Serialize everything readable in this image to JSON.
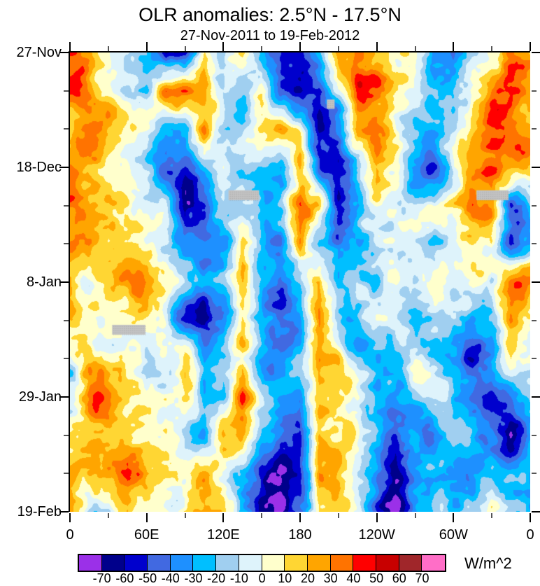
{
  "title": "OLR anomalies: 2.5°N - 17.5°N",
  "subtitle": "27-Nov-2011 to 19-Feb-2012",
  "colorbar": {
    "units_label": "W/m^2",
    "levels": [
      -70,
      -60,
      -50,
      -40,
      -30,
      -20,
      -10,
      0,
      10,
      20,
      30,
      40,
      50,
      60,
      70
    ],
    "colors": [
      "#9B30E8",
      "#00008B",
      "#0000CD",
      "#4169E1",
      "#1E90FF",
      "#00BFFF",
      "#A0CFF0",
      "#DEF3FB",
      "#FFFFCC",
      "#FFD633",
      "#FFA500",
      "#FF7300",
      "#FF0000",
      "#C80000",
      "#A0262A",
      "#FF6EC7"
    ],
    "missing_color": "#C3C3C3"
  },
  "axes": {
    "x_major": [
      {
        "deg": 0,
        "label": "0"
      },
      {
        "deg": 60,
        "label": "60E"
      },
      {
        "deg": 120,
        "label": "120E"
      },
      {
        "deg": 180,
        "label": "180"
      },
      {
        "deg": 240,
        "label": "120W"
      },
      {
        "deg": 300,
        "label": "60W"
      },
      {
        "deg": 360,
        "label": "0"
      }
    ],
    "x_minor_deg": [
      30,
      90,
      150,
      210,
      270,
      330
    ],
    "y_major": [
      {
        "day": 0,
        "label": "27-Nov"
      },
      {
        "day": 21,
        "label": "18-Dec"
      },
      {
        "day": 42,
        "label": "8-Jan"
      },
      {
        "day": 63,
        "label": "29-Jan"
      },
      {
        "day": 84,
        "label": "19-Feb"
      }
    ],
    "y_minor_days": [
      7,
      14,
      28,
      35,
      49,
      56,
      70,
      77
    ]
  },
  "chart_data": {
    "type": "heatmap",
    "title": "OLR anomalies: 2.5°N - 17.5°N",
    "subtitle": "27-Nov-2011 to 19-Feb-2012",
    "xlabel_circ_deg": "longitude 0..360 (labels 0,60E,120E,180,120W,60W,0)",
    "ylabel_time": "27-Nov-2011 (top) to 19-Feb-2012 (bottom), major ticks every 21 days",
    "units": "W/m^2",
    "contour_levels": [
      -70,
      -60,
      -50,
      -40,
      -30,
      -20,
      -10,
      0,
      10,
      20,
      30,
      40,
      50,
      60,
      70
    ],
    "x_lon_deg": [
      0,
      15,
      30,
      45,
      60,
      75,
      90,
      105,
      120,
      135,
      150,
      165,
      180,
      195,
      210,
      225,
      240,
      255,
      270,
      285,
      300,
      315,
      330,
      345,
      360
    ],
    "y_dates": [
      "27-Nov",
      "4-Dec",
      "11-Dec",
      "18-Dec",
      "25-Dec",
      "1-Jan",
      "8-Jan",
      "15-Jan",
      "22-Jan",
      "29-Jan",
      "5-Feb",
      "12-Feb",
      "19-Feb"
    ],
    "values_wm2": [
      [
        25,
        30,
        15,
        5,
        -15,
        -75,
        -60,
        20,
        -15,
        10,
        -35,
        -45,
        -55,
        -25,
        30,
        35,
        20,
        5,
        15,
        -35,
        -50,
        -15,
        15,
        30,
        25
      ],
      [
        30,
        25,
        10,
        -5,
        -15,
        30,
        45,
        30,
        0,
        -20,
        0,
        -60,
        -65,
        -60,
        -15,
        35,
        30,
        5,
        0,
        -20,
        -25,
        15,
        35,
        50,
        30
      ],
      [
        20,
        30,
        15,
        0,
        -10,
        -30,
        -35,
        30,
        -5,
        -15,
        5,
        25,
        10,
        -60,
        -35,
        30,
        35,
        5,
        -30,
        -35,
        -15,
        15,
        35,
        35,
        30
      ],
      [
        20,
        15,
        5,
        0,
        -15,
        -40,
        -45,
        -25,
        0,
        -15,
        -30,
        -40,
        20,
        -50,
        -65,
        -30,
        20,
        0,
        -35,
        -45,
        -10,
        15,
        30,
        30,
        20
      ],
      [
        30,
        25,
        15,
        10,
        0,
        -15,
        -75,
        -60,
        -15,
        -15,
        -35,
        -25,
        30,
        15,
        -60,
        -35,
        0,
        5,
        -10,
        0,
        15,
        30,
        15,
        -40,
        -15
      ],
      [
        20,
        30,
        15,
        25,
        10,
        0,
        -40,
        -50,
        -30,
        20,
        -30,
        -45,
        25,
        -35,
        -45,
        -20,
        0,
        5,
        0,
        -25,
        -15,
        15,
        25,
        -50,
        -25
      ],
      [
        15,
        -10,
        10,
        15,
        25,
        0,
        -20,
        -35,
        -25,
        15,
        -35,
        -55,
        -30,
        30,
        -20,
        0,
        -15,
        5,
        -20,
        0,
        -15,
        0,
        -15,
        40,
        30
      ],
      [
        5,
        10,
        5,
        5,
        10,
        -5,
        -60,
        -65,
        -35,
        15,
        -25,
        -50,
        -35,
        35,
        -20,
        -35,
        0,
        5,
        -25,
        -15,
        -25,
        -30,
        -15,
        30,
        5
      ],
      [
        -10,
        20,
        10,
        0,
        -10,
        0,
        15,
        -40,
        -30,
        0,
        -20,
        -40,
        -25,
        35,
        25,
        -15,
        -25,
        -15,
        0,
        -20,
        -40,
        -55,
        -35,
        10,
        -5
      ],
      [
        5,
        25,
        20,
        5,
        0,
        15,
        10,
        -35,
        -35,
        35,
        -15,
        -30,
        -35,
        30,
        25,
        15,
        -25,
        -20,
        -15,
        -5,
        -20,
        -40,
        -55,
        -35,
        -20
      ],
      [
        15,
        20,
        15,
        5,
        -10,
        10,
        -15,
        -25,
        25,
        15,
        -30,
        -40,
        -50,
        30,
        25,
        10,
        -30,
        -60,
        -30,
        -35,
        -20,
        -30,
        -40,
        -70,
        -30
      ],
      [
        15,
        20,
        25,
        40,
        25,
        15,
        0,
        15,
        0,
        -25,
        -60,
        -75,
        -60,
        25,
        15,
        -15,
        -35,
        -65,
        -30,
        -20,
        -30,
        -35,
        -25,
        -30,
        -30
      ],
      [
        15,
        -20,
        -15,
        25,
        15,
        10,
        5,
        20,
        10,
        -25,
        -55,
        -70,
        -50,
        15,
        20,
        0,
        -40,
        -65,
        -30,
        -15,
        -25,
        -20,
        10,
        -15,
        -20
      ]
    ],
    "missing_data_boxes": [
      {
        "lon_start": 124,
        "lon_end": 148,
        "day_start": 25.2,
        "day_end": 27.0
      },
      {
        "lon_start": 318,
        "lon_end": 343,
        "day_start": 25.2,
        "day_end": 27.0
      },
      {
        "lon_start": 33,
        "lon_end": 59,
        "day_start": 49.8,
        "day_end": 51.6
      },
      {
        "lon_start": 201,
        "lon_end": 207,
        "day_start": 8.6,
        "day_end": 10.3
      }
    ],
    "grid": false,
    "legend_position": "bottom-colorbar"
  }
}
